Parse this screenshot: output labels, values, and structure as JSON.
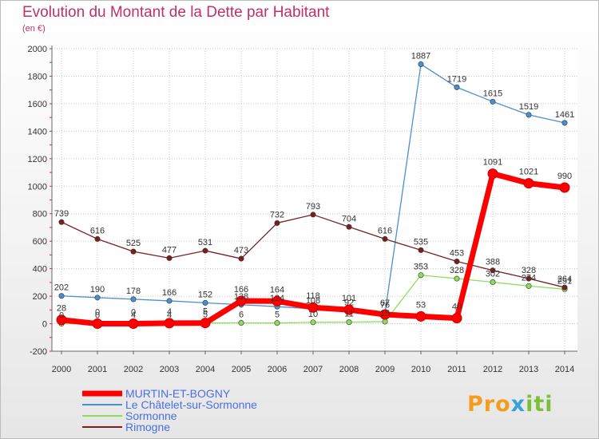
{
  "header": {
    "title": "Evolution du Montant de la Dette par Habitant",
    "subtitle": "(en €)"
  },
  "logo": {
    "text": "Proxiti",
    "part1": "Pro",
    "part2": "x",
    "part3": "iti"
  },
  "chart_data": {
    "type": "line",
    "title": "Evolution du Montant de la Dette par Habitant",
    "ylabel": "(en €)",
    "xlabel": "",
    "ylim": [
      -200,
      2000
    ],
    "yticks": [
      -200,
      0,
      200,
      400,
      600,
      800,
      1000,
      1200,
      1400,
      1600,
      1800,
      2000
    ],
    "x": [
      "2000",
      "2001",
      "2002",
      "2003",
      "2004",
      "2005",
      "2006",
      "2007",
      "2008",
      "2009",
      "2010",
      "2011",
      "2012",
      "2013",
      "2014"
    ],
    "grid": true,
    "legend_position": "bottom-left",
    "series": [
      {
        "name": "MURTIN-ET-BOGNY",
        "color": "#ff0000",
        "bold": true,
        "values": [
          28,
          0,
          0,
          4,
          5,
          166,
          164,
          118,
          101,
          67,
          53,
          40,
          1091,
          1021,
          990
        ]
      },
      {
        "name": "Le Châtelet-sur-Sormonne",
        "color": "#4a8fd0",
        "bold": false,
        "values": [
          202,
          190,
          178,
          166,
          152,
          138,
          124,
          108,
          92,
          76,
          1887,
          1719,
          1615,
          1519,
          1461
        ]
      },
      {
        "name": "Sormonne",
        "color": "#8fdc5c",
        "bold": false,
        "values": [
          0,
          0,
          4,
          4,
          5,
          6,
          5,
          10,
          11,
          15,
          353,
          328,
          302,
          274,
          251
        ]
      },
      {
        "name": "Rimogne",
        "color": "#7a1f1f",
        "bold": false,
        "values": [
          739,
          616,
          525,
          477,
          531,
          473,
          732,
          793,
          704,
          616,
          535,
          453,
          388,
          328,
          264
        ]
      }
    ]
  }
}
